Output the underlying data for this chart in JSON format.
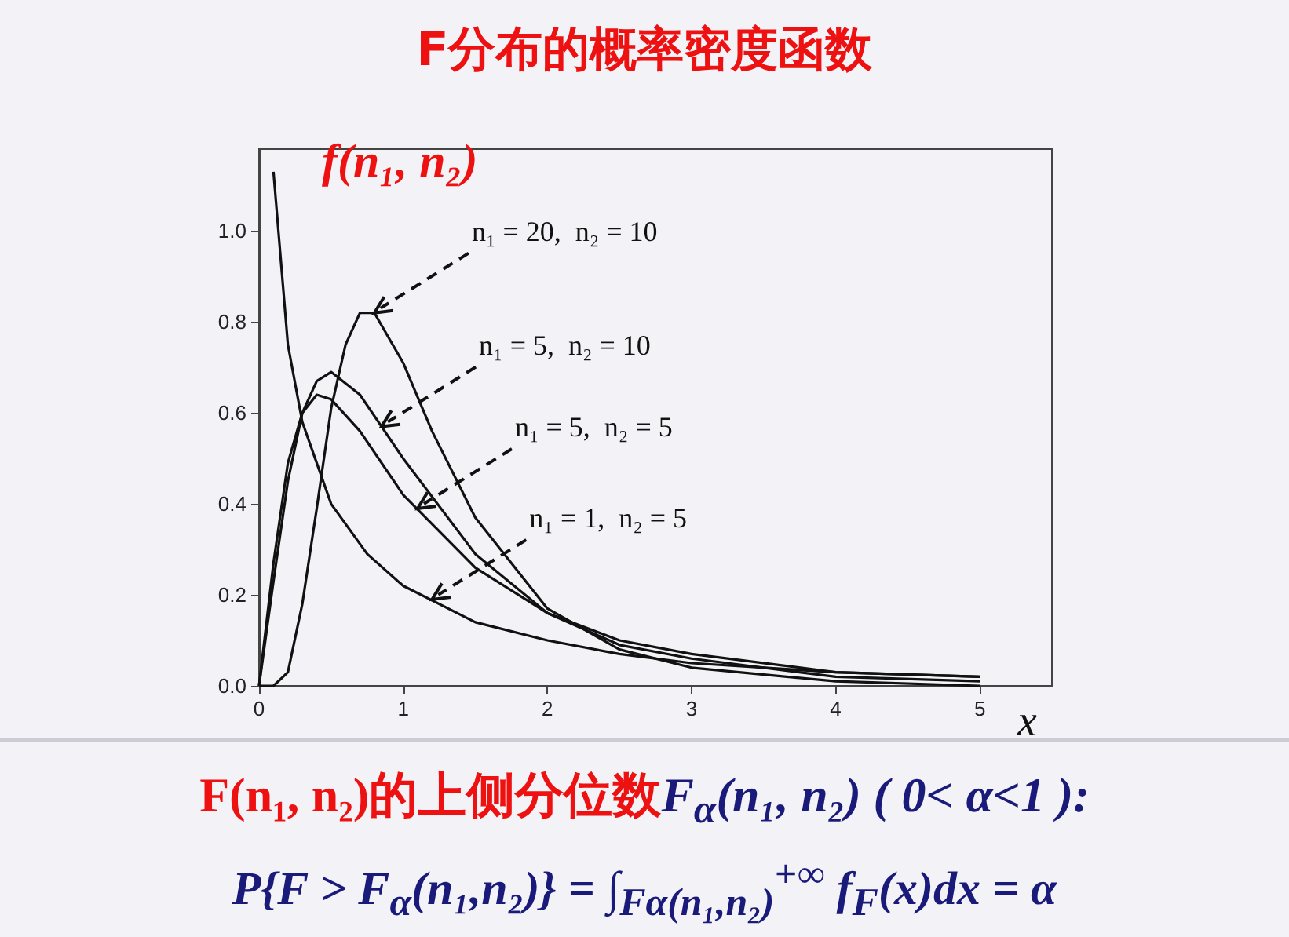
{
  "chart_data": {
    "type": "line",
    "title": "F分布的概率密度函数",
    "ylabel": "f(n₁, n₂)",
    "xlabel": "x",
    "xlim": [
      0,
      5.5
    ],
    "ylim": [
      0,
      1.18
    ],
    "xticks": [
      0,
      1,
      2,
      3,
      4,
      5
    ],
    "yticks": [
      {
        "value": 0,
        "label": "0.0"
      },
      {
        "value": 0.2,
        "label": "0.2"
      },
      {
        "value": 0.4,
        "label": "0.4"
      },
      {
        "value": 0.6,
        "label": "0.6"
      },
      {
        "value": 0.8,
        "label": "0.8"
      },
      {
        "value": 1,
        "label": "1.0"
      }
    ],
    "grid": false,
    "marker": "none",
    "line_style": "solid",
    "series": [
      {
        "color": "#111111",
        "x": [
          0.1,
          0.2,
          0.3,
          0.5,
          0.75,
          1,
          1.5,
          2,
          2.5,
          3,
          4,
          5
        ],
        "values": [
          1.13,
          0.75,
          0.58,
          0.4,
          0.29,
          0.22,
          0.14,
          0.1,
          0.07,
          0.05,
          0.03,
          0.02
        ]
      },
      {
        "color": "#111111",
        "x": [
          0,
          0.1,
          0.2,
          0.3,
          0.4,
          0.5,
          0.7,
          1,
          1.5,
          2,
          2.5,
          3,
          4,
          5
        ],
        "values": [
          0,
          0.27,
          0.49,
          0.6,
          0.64,
          0.63,
          0.56,
          0.42,
          0.26,
          0.16,
          0.1,
          0.07,
          0.03,
          0.02
        ]
      },
      {
        "color": "#111111",
        "x": [
          0,
          0.1,
          0.2,
          0.3,
          0.4,
          0.5,
          0.7,
          1,
          1.5,
          2,
          2.5,
          3,
          4,
          5
        ],
        "values": [
          0,
          0.23,
          0.45,
          0.6,
          0.67,
          0.69,
          0.64,
          0.5,
          0.29,
          0.16,
          0.09,
          0.06,
          0.02,
          0.01
        ]
      },
      {
        "color": "#111111",
        "x": [
          0,
          0.1,
          0.2,
          0.3,
          0.4,
          0.5,
          0.6,
          0.7,
          0.8,
          1,
          1.2,
          1.5,
          2,
          2.5,
          3,
          4,
          5
        ],
        "values": [
          0,
          0,
          0.03,
          0.18,
          0.39,
          0.61,
          0.75,
          0.82,
          0.82,
          0.71,
          0.56,
          0.37,
          0.17,
          0.08,
          0.04,
          0.01,
          0
        ]
      }
    ],
    "annotations": [
      {
        "text": "n₁ = 20,  n₂ = 10",
        "x": 0.8,
        "y": 0.82
      },
      {
        "text": "n₁ = 5,  n₂ = 10",
        "x": 0.85,
        "y": 0.57
      },
      {
        "text": "n₁ = 5,  n₂ = 5",
        "x": 1.1,
        "y": 0.39
      },
      {
        "text": "n₁ = 1,  n₂ = 5",
        "x": 1.2,
        "y": 0.19
      },
      "F(n₁, n₂)的上侧分位数",
      "F$_{α}$(n₁, n₂)   ( 0< α<1 ):",
      "P{F > F$_{α}$(n₁,n₂)} = ∫$_{Fα(n₁,n₂)}$$^{+∞}$ f$_{F}$(x)dx = α"
    ]
  }
}
